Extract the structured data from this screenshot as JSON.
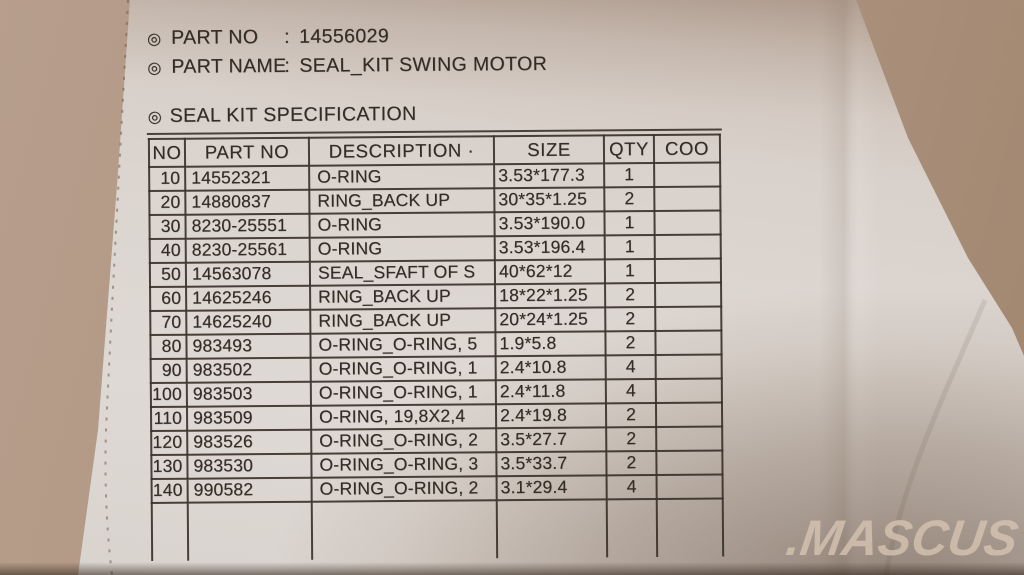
{
  "watermark": {
    "text": ".MASCUS"
  },
  "label": {
    "bullet": "◎",
    "fields": [
      {
        "name": "PART NO",
        "sep": ":",
        "value": "14556029"
      },
      {
        "name": "PART NAME",
        "sep": ":",
        "value": "SEAL_KIT SWING MOTOR"
      }
    ],
    "section_title": "SEAL KIT SPECIFICATION",
    "table": {
      "columns": [
        "NO",
        "PART NO",
        "DESCRIPTION ·",
        "SIZE",
        "QTY",
        "COO"
      ],
      "rows": [
        [
          "10",
          "14552321",
          "O-RING",
          "3.53*177.3",
          "1",
          ""
        ],
        [
          "20",
          "14880837",
          "RING_BACK UP",
          "30*35*1.25",
          "2",
          ""
        ],
        [
          "30",
          "8230-25551",
          "O-RING",
          "3.53*190.0",
          "1",
          ""
        ],
        [
          "40",
          "8230-25561",
          "O-RING",
          "3.53*196.4",
          "1",
          ""
        ],
        [
          "50",
          "14563078",
          "SEAL_SFAFT OF S",
          "40*62*12",
          "1",
          ""
        ],
        [
          "60",
          "14625246",
          "RING_BACK UP",
          "18*22*1.25",
          "2",
          ""
        ],
        [
          "70",
          "14625240",
          "RING_BACK UP",
          "20*24*1.25",
          "2",
          ""
        ],
        [
          "80",
          "983493",
          "O-RING_O-RING, 5",
          "1.9*5.8",
          "2",
          ""
        ],
        [
          "90",
          "983502",
          "O-RING_O-RING, 1",
          "2.4*10.8",
          "4",
          ""
        ],
        [
          "100",
          "983503",
          "O-RING_O-RING, 1",
          "2.4*11.8",
          "4",
          ""
        ],
        [
          "110",
          "983509",
          "O-RING, 19,8X2,4",
          "2.4*19.8",
          "2",
          ""
        ],
        [
          "120",
          "983526",
          "O-RING_O-RING, 2",
          "3.5*27.7",
          "2",
          ""
        ],
        [
          "130",
          "983530",
          "O-RING_O-RING, 3",
          "3.5*33.7",
          "2",
          ""
        ],
        [
          "140",
          "990582",
          "O-RING_O-RING, 2",
          "3.1*29.4",
          "4",
          ""
        ]
      ]
    }
  },
  "colors": {
    "ink": "#332c25",
    "bag": "#d9d2cc",
    "background": "#ac927e",
    "watermark": "#d6c4b2"
  }
}
